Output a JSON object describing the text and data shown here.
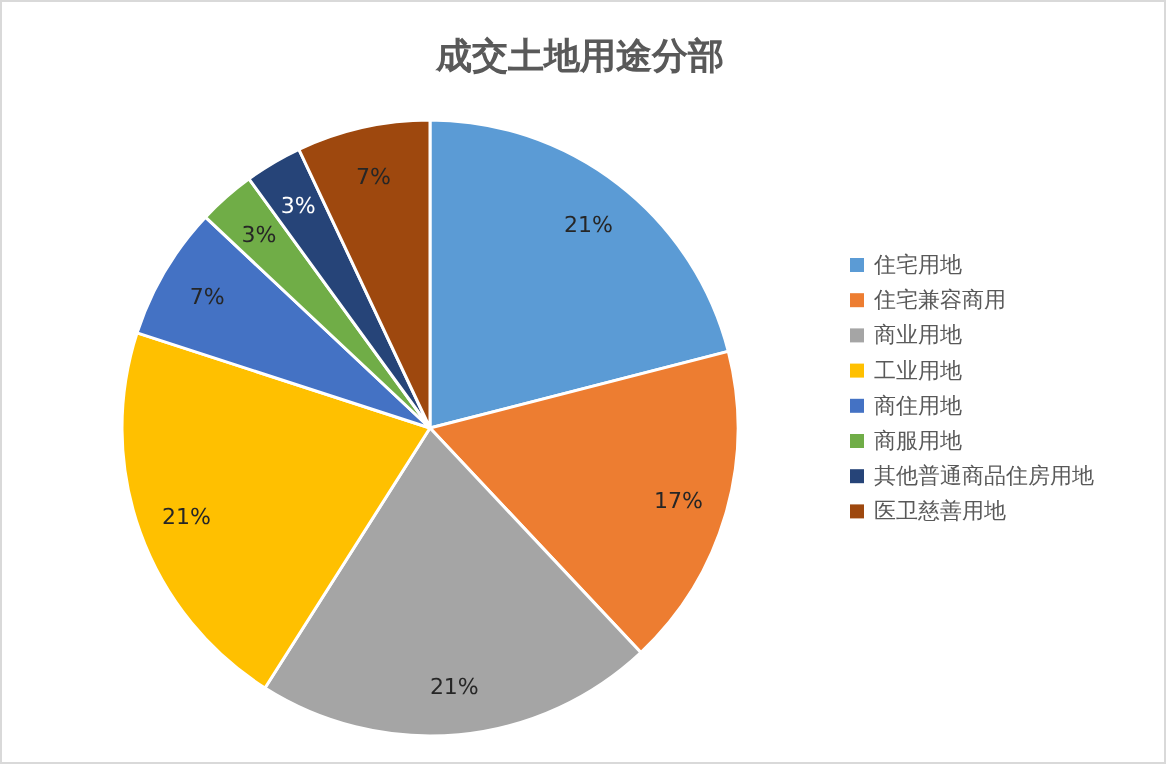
{
  "chart_data": {
    "type": "pie",
    "title": "成交土地用途分部",
    "categories": [
      "住宅用地",
      "住宅兼容商用",
      "商业用地",
      "工业用地",
      "商住用地",
      "商服用地",
      "其他普通商品住房用地",
      "医卫慈善用地"
    ],
    "values": [
      21,
      17,
      21,
      21,
      7,
      3,
      3,
      7
    ],
    "colors": [
      "#5b9bd5",
      "#ed7d31",
      "#a5a5a5",
      "#ffc000",
      "#4472c4",
      "#70ad47",
      "#264478",
      "#9e480e"
    ],
    "value_labels": [
      "21%",
      "17%",
      "21%",
      "21%",
      "7%",
      "3%",
      "3%",
      "7%"
    ],
    "legend": "right"
  }
}
